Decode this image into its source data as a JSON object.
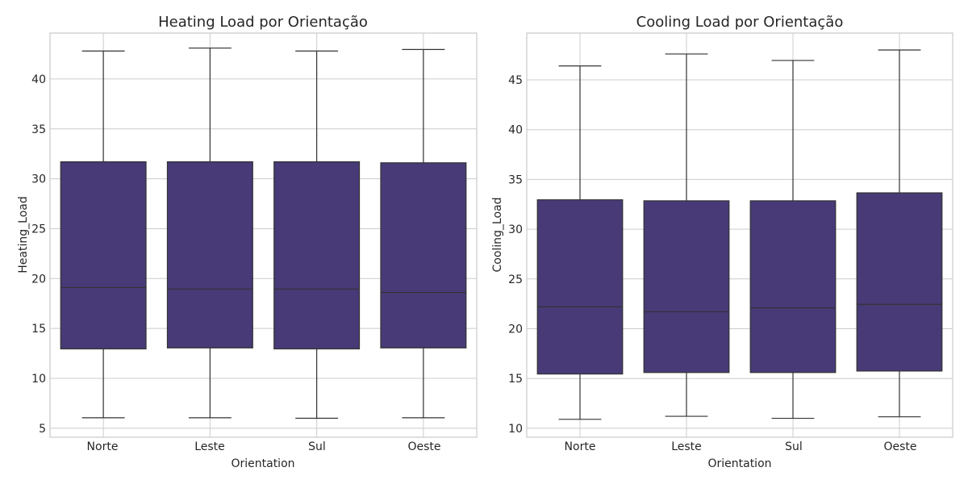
{
  "chart_data": [
    {
      "type": "box",
      "title": "Heating Load por Orientação",
      "xlabel": "Orientation",
      "ylabel": "Heating_Load",
      "categories": [
        "Norte",
        "Leste",
        "Sul",
        "Oeste"
      ],
      "ylim": [
        4.1,
        44.6
      ],
      "yticks": [
        5,
        10,
        15,
        20,
        25,
        30,
        35,
        40
      ],
      "boxes": [
        {
          "min": 6.05,
          "q1": 12.95,
          "median": 19.1,
          "q3": 31.7,
          "max": 42.8
        },
        {
          "min": 6.05,
          "q1": 13.05,
          "median": 18.95,
          "q3": 31.7,
          "max": 43.1
        },
        {
          "min": 6.0,
          "q1": 12.95,
          "median": 18.95,
          "q3": 31.7,
          "max": 42.8
        },
        {
          "min": 6.05,
          "q1": 13.05,
          "median": 18.6,
          "q3": 31.6,
          "max": 42.95
        }
      ],
      "grid": true,
      "color": "#483a77"
    },
    {
      "type": "box",
      "title": "Cooling Load por Orientação",
      "xlabel": "Orientation",
      "ylabel": "Cooling_Load",
      "categories": [
        "Norte",
        "Leste",
        "Sul",
        "Oeste"
      ],
      "ylim": [
        9.1,
        49.7
      ],
      "yticks": [
        10,
        15,
        20,
        25,
        30,
        35,
        40,
        45
      ],
      "boxes": [
        {
          "min": 10.9,
          "q1": 15.45,
          "median": 22.2,
          "q3": 32.95,
          "max": 46.4
        },
        {
          "min": 11.2,
          "q1": 15.6,
          "median": 21.7,
          "q3": 32.85,
          "max": 47.6
        },
        {
          "min": 11.0,
          "q1": 15.6,
          "median": 22.1,
          "q3": 32.85,
          "max": 46.95
        },
        {
          "min": 11.15,
          "q1": 15.75,
          "median": 22.45,
          "q3": 33.65,
          "max": 48.0
        }
      ],
      "grid": true,
      "color": "#483a77"
    }
  ]
}
